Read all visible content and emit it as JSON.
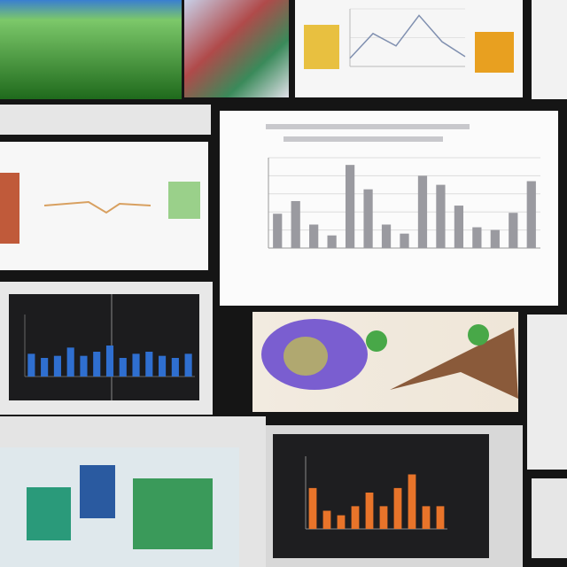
{
  "charts": [
    {
      "type": "bar",
      "color": "#9a9aa0",
      "values": [
        38,
        52,
        26,
        14,
        92,
        65,
        26,
        16,
        80,
        70,
        47,
        23,
        20,
        39,
        74
      ],
      "ylim": [
        0,
        100
      ],
      "yticks": [
        0,
        20,
        40,
        60,
        80,
        100
      ],
      "grid": true
    },
    {
      "type": "bar",
      "color": "#2f6fd0",
      "values": [
        22,
        18,
        20,
        28,
        20,
        24,
        30,
        18,
        22,
        24,
        20,
        18,
        22
      ],
      "ylim": [
        0,
        60
      ]
    },
    {
      "type": "bar",
      "color": "#e8742a",
      "values": [
        45,
        20,
        15,
        25,
        40,
        25,
        45,
        60,
        25,
        25
      ],
      "ylim": [
        0,
        80
      ]
    },
    {
      "type": "line",
      "color": "#8090b0",
      "values": [
        10,
        40,
        25,
        62,
        30,
        12
      ],
      "ylim": [
        0,
        70
      ],
      "grid": true,
      "yticks": [
        0,
        35,
        70
      ]
    }
  ]
}
